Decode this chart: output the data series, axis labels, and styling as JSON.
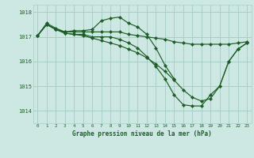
{
  "title": "Graphe pression niveau de la mer (hPa)",
  "background_color": "#cde8e2",
  "grid_color": "#a8cfc8",
  "line_color": "#1e5c28",
  "xlim": [
    -0.5,
    23.5
  ],
  "ylim": [
    1013.5,
    1018.3
  ],
  "yticks": [
    1014,
    1015,
    1016,
    1017,
    1018
  ],
  "xticks": [
    0,
    1,
    2,
    3,
    4,
    5,
    6,
    7,
    8,
    9,
    10,
    11,
    12,
    13,
    14,
    15,
    16,
    17,
    18,
    19,
    20,
    21,
    22,
    23
  ],
  "series": [
    {
      "x": [
        0,
        1,
        2,
        3,
        4,
        5,
        6,
        7,
        8,
        9,
        10,
        11,
        12,
        13,
        14,
        15
      ],
      "y": [
        1017.05,
        1017.55,
        1017.35,
        1017.2,
        1017.25,
        1017.25,
        1017.3,
        1017.65,
        1017.75,
        1017.8,
        1017.55,
        1017.4,
        1017.1,
        1016.55,
        1015.85,
        1015.3
      ]
    },
    {
      "x": [
        0,
        1,
        2,
        3,
        4,
        5,
        6,
        7,
        8,
        9,
        10,
        11,
        12,
        13,
        14,
        15,
        16,
        17,
        18,
        19,
        20,
        21,
        22,
        23
      ],
      "y": [
        1017.05,
        1017.5,
        1017.3,
        1017.2,
        1017.2,
        1017.2,
        1017.2,
        1017.2,
        1017.2,
        1017.2,
        1017.1,
        1017.05,
        1017.0,
        1016.95,
        1016.9,
        1016.8,
        1016.75,
        1016.7,
        1016.7,
        1016.7,
        1016.7,
        1016.7,
        1016.75,
        1016.8
      ]
    },
    {
      "x": [
        0,
        1,
        2,
        3,
        4,
        5,
        6,
        7,
        8,
        9,
        10,
        11,
        12,
        13,
        14,
        15,
        16,
        17,
        18,
        19,
        20,
        21,
        22,
        23
      ],
      "y": [
        1017.05,
        1017.5,
        1017.3,
        1017.15,
        1017.1,
        1017.05,
        1016.95,
        1016.85,
        1016.75,
        1016.65,
        1016.5,
        1016.35,
        1016.15,
        1015.9,
        1015.6,
        1015.25,
        1014.85,
        1014.55,
        1014.4,
        1014.5,
        1015.0,
        1016.0,
        1016.5,
        1016.75
      ]
    },
    {
      "x": [
        0,
        1,
        2,
        3,
        4,
        5,
        6,
        7,
        8,
        9,
        10,
        11,
        12,
        13,
        14,
        15,
        16,
        17,
        18,
        19,
        20,
        21,
        22,
        23
      ],
      "y": [
        1017.05,
        1017.5,
        1017.3,
        1017.15,
        1017.1,
        1017.1,
        1017.0,
        1017.0,
        1017.0,
        1016.9,
        1016.75,
        1016.55,
        1016.2,
        1015.8,
        1015.3,
        1014.65,
        1014.25,
        1014.2,
        1014.2,
        1014.65,
        1015.0,
        1016.0,
        1016.5,
        1016.75
      ]
    }
  ]
}
